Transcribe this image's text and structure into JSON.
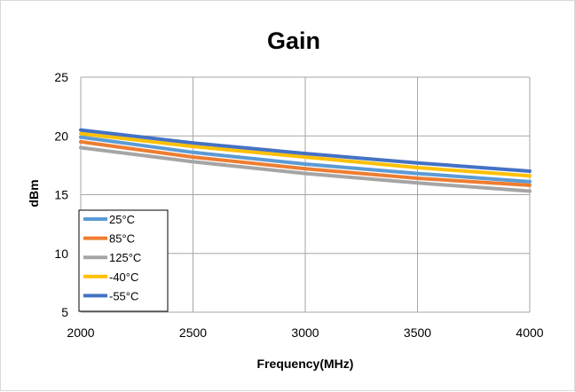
{
  "chart_data": {
    "type": "line",
    "title": "Gain",
    "xlabel": "Frequency(MHz)",
    "ylabel": "dBm",
    "xlim": [
      2000,
      4000
    ],
    "ylim": [
      5,
      25
    ],
    "xticks": [
      2000,
      2500,
      3000,
      3500,
      4000
    ],
    "yticks": [
      5,
      10,
      15,
      20,
      25
    ],
    "grid": true,
    "legend_position": "bottom-left",
    "x": [
      2000,
      2500,
      3000,
      3500,
      4000
    ],
    "series": [
      {
        "name": "25°C",
        "color": "#5B9BD5",
        "values": [
          19.9,
          18.6,
          17.6,
          16.8,
          16.1
        ]
      },
      {
        "name": "85°C",
        "color": "#ED7D31",
        "values": [
          19.5,
          18.2,
          17.2,
          16.4,
          15.8
        ]
      },
      {
        "name": "125°C",
        "color": "#A5A5A5",
        "values": [
          19.0,
          17.8,
          16.8,
          16.0,
          15.3
        ]
      },
      {
        "name": "-40°C",
        "color": "#FFC000",
        "values": [
          20.2,
          19.1,
          18.2,
          17.3,
          16.6
        ]
      },
      {
        "name": "-55°C",
        "color": "#4472C4",
        "values": [
          20.5,
          19.4,
          18.5,
          17.7,
          17.0
        ]
      }
    ]
  }
}
